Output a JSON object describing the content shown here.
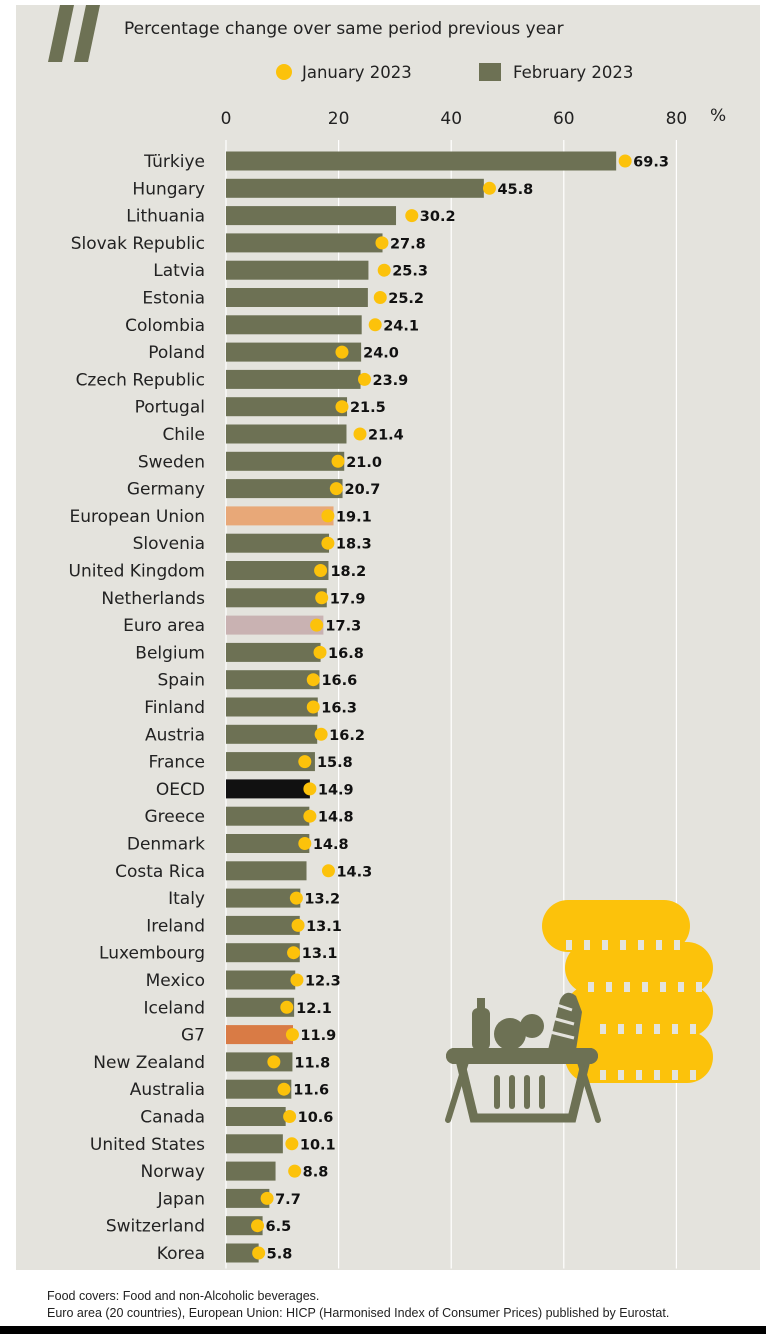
{
  "chart_data": {
    "type": "bar",
    "subtitle": "Percentage change over same period previous year",
    "unit_label": "%",
    "xlim": [
      0,
      80
    ],
    "x_ticks": [
      "0",
      "20",
      "40",
      "60",
      "80"
    ],
    "grid": true,
    "legend_placement": "top",
    "series": [
      {
        "name": "January 2023",
        "marker": "dot",
        "color": "#fcc20b",
        "values": [
          70.9,
          46.8,
          33.0,
          27.7,
          28.1,
          27.4,
          26.5,
          20.6,
          24.6,
          20.6,
          23.8,
          19.9,
          19.6,
          18.1,
          18.1,
          16.8,
          17.0,
          16.1,
          16.7,
          15.5,
          15.5,
          16.9,
          14.0,
          14.9,
          14.9,
          14.0,
          18.2,
          12.5,
          12.8,
          12.0,
          12.6,
          10.8,
          11.8,
          8.5,
          10.3,
          11.3,
          11.7,
          12.2,
          7.3,
          5.6,
          5.8
        ]
      },
      {
        "name": "February 2023",
        "marker": "bar",
        "color": "#6d7154",
        "values": [
          69.3,
          45.8,
          30.2,
          27.8,
          25.3,
          25.2,
          24.1,
          24.0,
          23.9,
          21.5,
          21.4,
          21.0,
          20.7,
          19.1,
          18.3,
          18.2,
          17.9,
          17.3,
          16.8,
          16.6,
          16.3,
          16.2,
          15.8,
          14.9,
          14.8,
          14.8,
          14.3,
          13.2,
          13.1,
          13.1,
          12.3,
          12.1,
          11.9,
          11.8,
          11.6,
          10.6,
          10.1,
          8.8,
          7.7,
          6.5,
          5.8
        ]
      }
    ],
    "categories": [
      "Türkiye",
      "Hungary",
      "Lithuania",
      "Slovak Republic",
      "Latvia",
      "Estonia",
      "Colombia",
      "Poland",
      "Czech Republic",
      "Portugal",
      "Chile",
      "Sweden",
      "Germany",
      "European Union",
      "Slovenia",
      "United Kingdom",
      "Netherlands",
      "Euro area",
      "Belgium",
      "Spain",
      "Finland",
      "Austria",
      "France",
      "OECD",
      "Greece",
      "Denmark",
      "Costa Rica",
      "Italy",
      "Ireland",
      "Luxembourg",
      "Mexico",
      "Iceland",
      "G7",
      "New Zealand",
      "Australia",
      "Canada",
      "United States",
      "Norway",
      "Japan",
      "Switzerland",
      "Korea"
    ],
    "data_labels": [
      "69.3",
      "45.8",
      "30.2",
      "27.8",
      "25.3",
      "25.2",
      "24.1",
      "24.0",
      "23.9",
      "21.5",
      "21.4",
      "21.0",
      "20.7",
      "19.1",
      "18.3",
      "18.2",
      "17.9",
      "17.3",
      "16.8",
      "16.6",
      "16.3",
      "16.2",
      "15.8",
      "14.9",
      "14.8",
      "14.8",
      "14.3",
      "13.2",
      "13.1",
      "13.1",
      "12.3",
      "12.1",
      "11.9",
      "11.8",
      "11.6",
      "10.6",
      "10.1",
      "8.8",
      "7.7",
      "6.5",
      "5.8"
    ],
    "highlight_colors": {
      "European Union": "#e8a878",
      "Euro area": "#c9b2b2",
      "OECD": "#111111",
      "G7": "#d97b45"
    }
  },
  "colors": {
    "background": "#e4e3dd",
    "bar_default": "#6d7154",
    "dot": "#fcc20b",
    "gridline": "#ffffff",
    "logo": "#6d7154",
    "illustration_basket": "#6d7154",
    "illustration_coins": "#fcc20b"
  },
  "icons": {
    "logo": "quote-mark-logo-icon",
    "illustration": "grocery-basket-coins-icon"
  },
  "footnotes": {
    "line1": "Food covers: Food and non-Alcoholic beverages.",
    "line2": "Euro area (20 countries), European Union: HICP (Harmonised Index of Consumer Prices) published by Eurostat."
  }
}
